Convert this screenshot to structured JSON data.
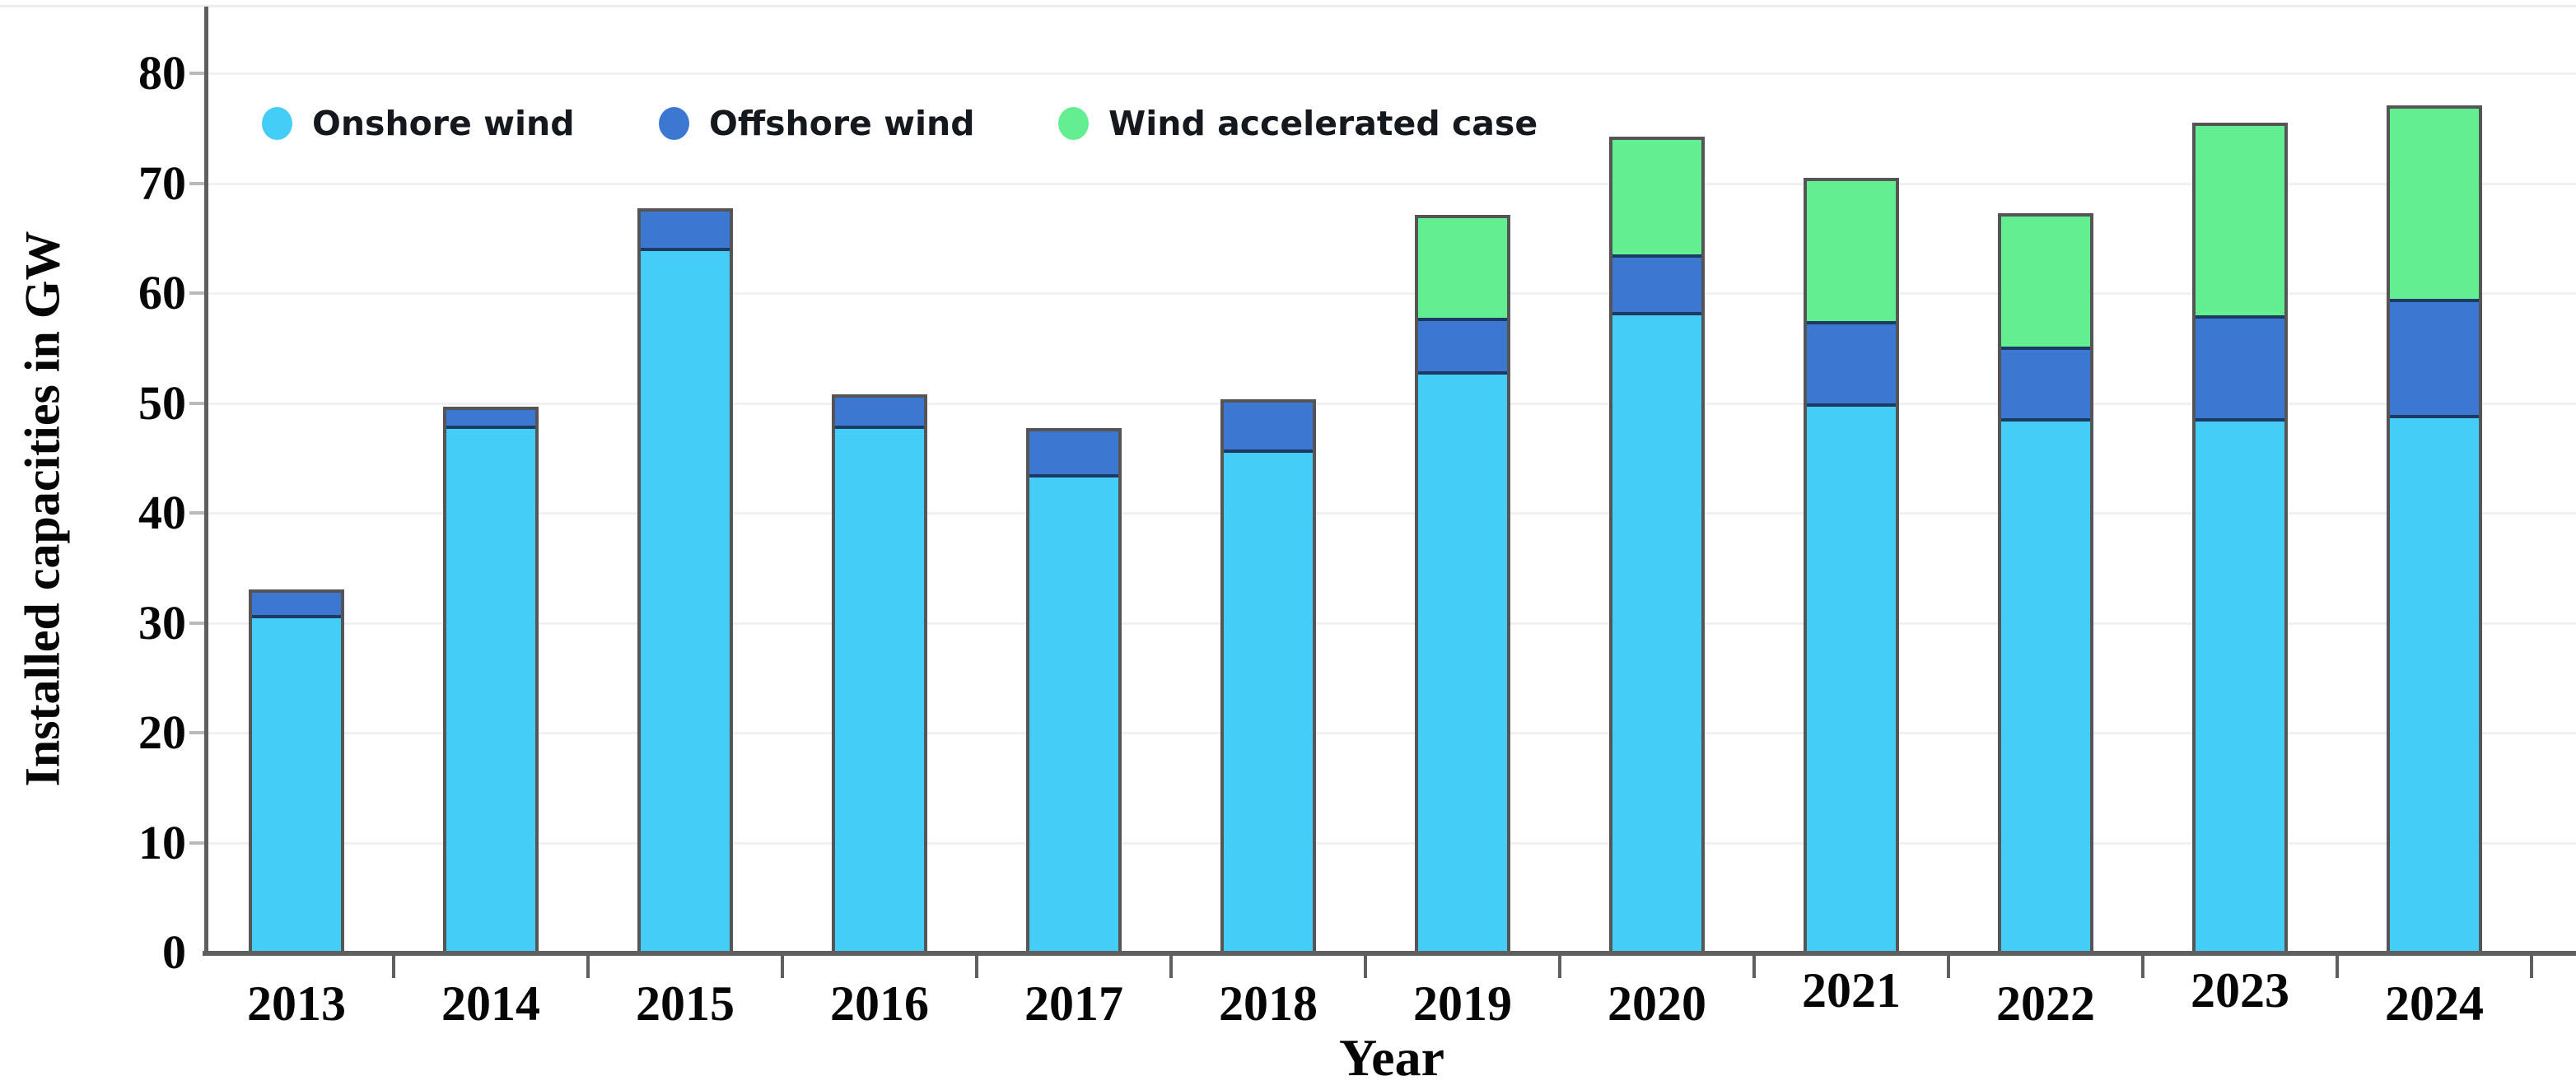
{
  "chart_data": {
    "type": "bar",
    "stacked": true,
    "title": "",
    "xlabel": "Year",
    "ylabel": "Installed capacities in GW",
    "ylim": [
      0,
      80
    ],
    "yticks": [
      0,
      10,
      20,
      30,
      40,
      50,
      60,
      70,
      80
    ],
    "grid": "horizontal",
    "legend_position": "top-left-inside",
    "categories": [
      "2013",
      "2014",
      "2015",
      "2016",
      "2017",
      "2018",
      "2019",
      "2020",
      "2021",
      "2022",
      "2023",
      "2024"
    ],
    "series": [
      {
        "name": "Onshore wind",
        "color": "#44CEF7",
        "values": [
          31.0,
          48.2,
          64.4,
          48.2,
          43.8,
          46.0,
          53.3,
          58.7,
          50.3,
          49.0,
          48.9,
          49.2
        ]
      },
      {
        "name": "Offshore wind",
        "color": "#3C78D2",
        "values": [
          2.0,
          1.5,
          3.3,
          2.6,
          3.9,
          4.3,
          4.6,
          5.0,
          7.3,
          6.3,
          9.2,
          10.4
        ]
      },
      {
        "name": "Wind accelerated case",
        "color": "#64EE92",
        "values": [
          0,
          0,
          0,
          0,
          0,
          0,
          9.2,
          10.5,
          12.9,
          12.0,
          17.4,
          17.5
        ]
      }
    ],
    "totals": [
      33.0,
      49.7,
      67.7,
      50.8,
      47.7,
      50.3,
      67.1,
      74.2,
      70.5,
      67.3,
      75.5,
      77.1
    ]
  },
  "colors": {
    "grid": "#f1f1f1",
    "axis": "#5f5f5f",
    "bar_outline": "#555555",
    "segment_divider": "#1d3a63",
    "text": "#060606"
  }
}
